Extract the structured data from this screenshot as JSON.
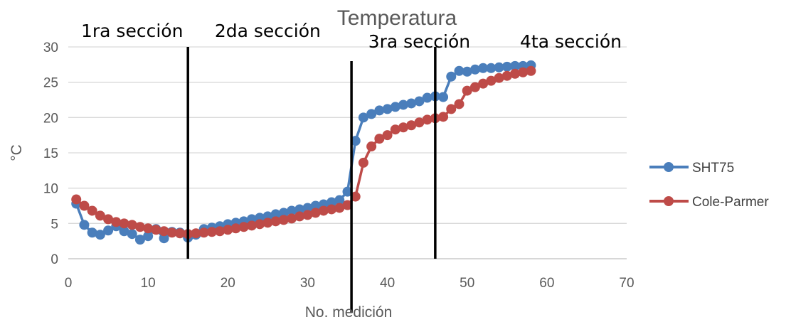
{
  "chart_data": {
    "type": "line",
    "title": "Temperatura",
    "xlabel": "No. medición",
    "ylabel": "°C",
    "xlim": [
      0,
      70
    ],
    "ylim": [
      0,
      30
    ],
    "xticks": [
      0,
      10,
      20,
      30,
      40,
      50,
      60,
      70
    ],
    "yticks": [
      0,
      5,
      10,
      15,
      20,
      25,
      30
    ],
    "grid": true,
    "legend_position": "right",
    "x": [
      1,
      2,
      3,
      4,
      5,
      6,
      7,
      8,
      9,
      10,
      11,
      12,
      13,
      14,
      15,
      16,
      17,
      18,
      19,
      20,
      21,
      22,
      23,
      24,
      25,
      26,
      27,
      28,
      29,
      30,
      31,
      32,
      33,
      34,
      35,
      36,
      37,
      38,
      39,
      40,
      41,
      42,
      43,
      44,
      45,
      46,
      47,
      48,
      49,
      50,
      51,
      52,
      53,
      54,
      55,
      56,
      57,
      58
    ],
    "series": [
      {
        "name": "SHT75",
        "color": "#4a7ebb",
        "values": [
          7.8,
          4.8,
          3.7,
          3.4,
          4.0,
          4.6,
          3.9,
          3.5,
          2.7,
          3.2,
          4.2,
          2.9,
          3.8,
          3.7,
          3.0,
          3.4,
          4.2,
          4.4,
          4.6,
          4.9,
          5.1,
          5.3,
          5.6,
          5.8,
          6.0,
          6.3,
          6.5,
          6.8,
          7.0,
          7.2,
          7.5,
          7.7,
          8.0,
          8.3,
          9.5,
          16.7,
          20.0,
          20.5,
          21.0,
          21.2,
          21.5,
          21.8,
          22.0,
          22.3,
          22.8,
          23.0,
          22.9,
          25.8,
          26.6,
          26.5,
          26.8,
          27.0,
          27.0,
          27.1,
          27.2,
          27.3,
          27.3,
          27.4
        ]
      },
      {
        "name": "Cole-Parmer",
        "color": "#be4b48",
        "values": [
          8.4,
          7.5,
          6.8,
          6.1,
          5.6,
          5.2,
          5.0,
          4.8,
          4.5,
          4.3,
          4.1,
          3.9,
          3.7,
          3.6,
          3.5,
          3.6,
          3.7,
          3.8,
          3.9,
          4.1,
          4.3,
          4.5,
          4.7,
          4.9,
          5.1,
          5.3,
          5.5,
          5.7,
          6.0,
          6.2,
          6.5,
          6.8,
          7.0,
          7.2,
          7.6,
          8.8,
          13.6,
          15.9,
          17.0,
          17.5,
          18.3,
          18.6,
          18.9,
          19.3,
          19.7,
          19.9,
          20.1,
          21.2,
          21.9,
          23.8,
          24.3,
          24.8,
          25.2,
          25.6,
          25.9,
          26.2,
          26.4,
          26.6
        ]
      }
    ],
    "annotations": [
      {
        "text": "1ra sección",
        "x": 8
      },
      {
        "text": "2da sección",
        "x": 25
      },
      {
        "text": "3ra sección",
        "x": 44
      },
      {
        "text": "4ta sección",
        "x": 63
      }
    ],
    "vertical_lines": [
      15,
      35.5,
      46
    ]
  }
}
